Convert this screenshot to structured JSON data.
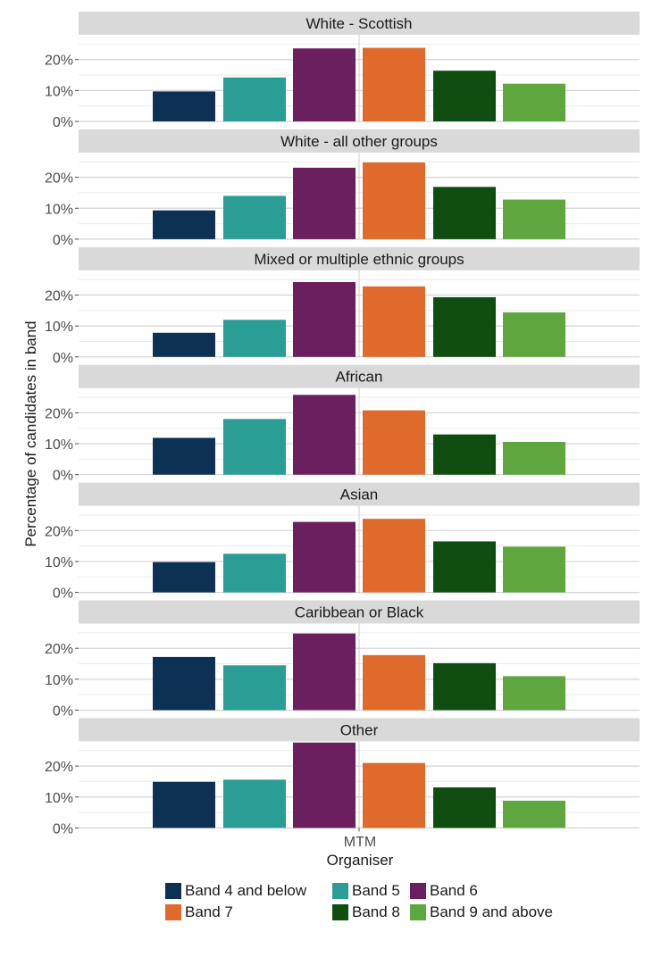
{
  "chart_data": {
    "type": "bar",
    "x_category": "MTM",
    "xlabel": "Organiser",
    "ylabel": "Percentage of candidates in band",
    "ylim": [
      0,
      28
    ],
    "yticks": [
      0,
      10,
      20
    ],
    "ytick_labels": [
      "0%",
      "10%",
      "20%"
    ],
    "grid": true,
    "legend_position": "bottom",
    "series": [
      {
        "name": "Band 4 and below",
        "color": "#0d3155"
      },
      {
        "name": "Band 5",
        "color": "#2a9d95"
      },
      {
        "name": "Band 6",
        "color": "#6b1f5e"
      },
      {
        "name": "Band 7",
        "color": "#e06a2c"
      },
      {
        "name": "Band 8",
        "color": "#0f4e10"
      },
      {
        "name": "Band 9 and above",
        "color": "#5ea63e"
      }
    ],
    "panels": [
      {
        "title": "White - Scottish",
        "values": [
          9.7,
          14.2,
          23.6,
          23.8,
          16.4,
          12.2
        ]
      },
      {
        "title": "White - all other groups",
        "values": [
          9.3,
          14.0,
          23.1,
          24.8,
          16.9,
          12.8
        ]
      },
      {
        "title": "Mixed or multiple ethnic groups",
        "values": [
          7.8,
          12.0,
          24.2,
          22.8,
          19.3,
          14.4
        ]
      },
      {
        "title": "African",
        "values": [
          11.9,
          18.0,
          25.8,
          20.8,
          13.0,
          10.6
        ]
      },
      {
        "title": "Asian",
        "values": [
          9.8,
          12.5,
          22.8,
          23.8,
          16.5,
          14.8
        ]
      },
      {
        "title": "Caribbean or Black",
        "values": [
          17.2,
          14.5,
          24.8,
          17.8,
          15.2,
          11.0
        ]
      },
      {
        "title": "Other",
        "values": [
          14.9,
          15.6,
          27.6,
          21.0,
          13.1,
          8.8
        ]
      }
    ]
  }
}
